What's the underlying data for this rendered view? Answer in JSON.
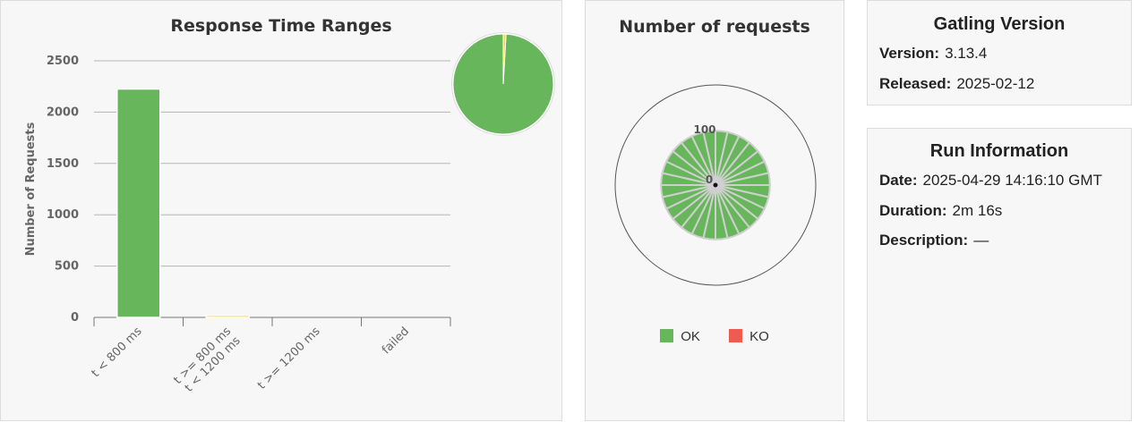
{
  "colors": {
    "ok": "#68b65c",
    "ko": "#f15b4f",
    "mid": "#ffdd00",
    "grid": "#aaaaaa"
  },
  "ranges_panel": {
    "title": "Response Time Ranges",
    "chart_data": {
      "type": "bar",
      "title": "Response Time Ranges",
      "ylabel": "Number of Requests",
      "ylim": [
        0,
        2500
      ],
      "yticks": [
        0,
        500,
        1000,
        1500,
        2000,
        2500
      ],
      "categories": [
        "t < 800 ms",
        "t >= 800 ms\nt < 1200 ms",
        "t >= 1200 ms",
        "failed"
      ],
      "category_labels": [
        [
          "t < 800 ms"
        ],
        [
          "t >= 800 ms",
          "t < 1200 ms"
        ],
        [
          "t >= 1200 ms"
        ],
        [
          "failed"
        ]
      ],
      "values": [
        2225,
        20,
        0,
        0
      ],
      "bar_colors": [
        "#68b65c",
        "#ffdd00",
        "#ffa900",
        "#f15b4f"
      ],
      "grid": true
    },
    "pie": {
      "type": "pie",
      "values": [
        2225,
        20
      ],
      "colors": [
        "#68b65c",
        "#ffdd00"
      ]
    }
  },
  "requests_panel": {
    "title": "Number of requests",
    "chart_data": {
      "type": "polar-column",
      "radial_ticks": [
        "100",
        "0"
      ],
      "rmax": 100,
      "series": [
        {
          "name": "OK",
          "values": [
            95,
            95,
            95,
            95,
            95,
            95,
            95,
            95,
            95,
            95,
            95,
            95,
            95,
            95,
            95,
            95,
            95,
            95,
            95,
            95,
            95,
            95,
            95,
            95,
            95,
            95,
            95,
            95
          ]
        },
        {
          "name": "KO",
          "values": [
            0,
            0,
            0,
            0,
            0,
            0,
            0,
            0,
            0,
            0,
            0,
            0,
            0,
            0,
            0,
            0,
            0,
            0,
            0,
            0,
            0,
            0,
            0,
            0,
            0,
            0,
            0,
            0
          ]
        }
      ]
    },
    "legend": [
      {
        "label": "OK",
        "color": "#68b65c"
      },
      {
        "label": "KO",
        "color": "#f15b4f"
      }
    ]
  },
  "gatling_version": {
    "title": "Gatling Version",
    "version_label": "Version:",
    "version": "3.13.4",
    "released_label": "Released:",
    "released": "2025-02-12"
  },
  "run_info": {
    "title": "Run Information",
    "date_label": "Date:",
    "date": "2025-04-29 14:16:10 GMT",
    "duration_label": "Duration:",
    "duration": "2m 16s",
    "description_label": "Description:",
    "description": "—"
  }
}
